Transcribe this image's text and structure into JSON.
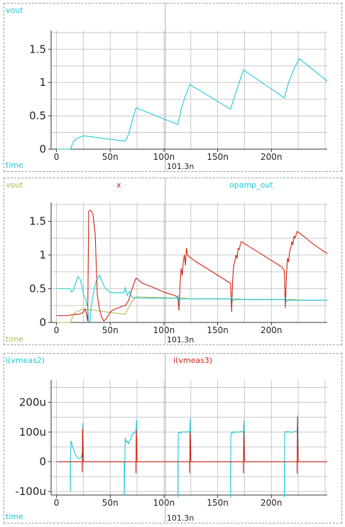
{
  "colors": {
    "cyan": "#1ec8d8",
    "red": "#d42010",
    "olive": "#b8b850",
    "grid": "#c8c8c8",
    "cursor": "#555555"
  },
  "cursor_label": "101.3n",
  "chart_data": [
    {
      "type": "line",
      "x_label": "time",
      "legend": [
        "vout"
      ],
      "xlim": [
        -5,
        252
      ],
      "ylim": [
        0,
        1.78
      ],
      "x_ticks": [
        0,
        50,
        100,
        150,
        200
      ],
      "x_tick_labels": [
        "0",
        "50n",
        "100n",
        "150n",
        "200n"
      ],
      "y_ticks": [
        0,
        0.5,
        1,
        1.5
      ],
      "y_tick_labels": [
        "0",
        "0.5",
        "1",
        "1.5"
      ],
      "cursor_x": 101.3,
      "series": [
        {
          "name": "vout",
          "color": "#1ec8d8",
          "x": [
            0,
            13,
            16,
            19,
            22,
            25,
            64,
            67,
            70,
            74,
            113,
            116,
            120,
            124,
            162,
            166,
            170,
            174,
            212,
            216,
            221,
            226,
            252
          ],
          "y": [
            0,
            0,
            0.12,
            0.16,
            0.18,
            0.2,
            0.12,
            0.22,
            0.4,
            0.62,
            0.37,
            0.6,
            0.8,
            0.97,
            0.6,
            0.8,
            1.0,
            1.19,
            0.77,
            1.0,
            1.2,
            1.36,
            1.02
          ]
        }
      ]
    },
    {
      "type": "line",
      "x_label": "time",
      "legend": [
        "vout",
        "x",
        "opamp_out"
      ],
      "xlim": [
        -5,
        252
      ],
      "ylim": [
        0,
        1.78
      ],
      "x_ticks": [
        0,
        50,
        100,
        150,
        200
      ],
      "x_tick_labels": [
        "0",
        "50n",
        "100n",
        "150n",
        "200n"
      ],
      "y_ticks": [
        0,
        0.5,
        1,
        1.5
      ],
      "y_tick_labels": [
        "0",
        "0.5",
        "1",
        "1.5"
      ],
      "cursor_x": 101.3,
      "series": [
        {
          "name": "vout",
          "color": "#b8b850",
          "x": [
            0,
            13,
            16,
            19,
            22,
            25,
            64,
            67,
            70,
            74,
            113,
            116,
            120,
            124,
            162,
            166,
            170,
            174,
            212,
            216,
            221,
            226,
            252
          ],
          "y": [
            0,
            0,
            0.12,
            0.16,
            0.18,
            0.2,
            0.12,
            0.22,
            0.3,
            0.38,
            0.36,
            0.36,
            0.36,
            0.35,
            0.35,
            0.35,
            0.35,
            0.34,
            0.34,
            0.34,
            0.34,
            0.33,
            0.33
          ]
        },
        {
          "name": "x",
          "color": "#d42010",
          "x": [
            0,
            10,
            13,
            16,
            20,
            24,
            27,
            29,
            30,
            31,
            32,
            33,
            34,
            36,
            38,
            40,
            42,
            44,
            46,
            48,
            50,
            52,
            55,
            58,
            61,
            64,
            67,
            70,
            74,
            80,
            90,
            100,
            110,
            113,
            114,
            115,
            116,
            117,
            118,
            119,
            120,
            121,
            122,
            124,
            130,
            140,
            150,
            160,
            162,
            163,
            164,
            165,
            166,
            167,
            168,
            169,
            170,
            171,
            172,
            174,
            180,
            190,
            200,
            210,
            212,
            213,
            214,
            215,
            216,
            217,
            218,
            219,
            220,
            221,
            222,
            224,
            230,
            240,
            252
          ],
          "y": [
            0.1,
            0.1,
            0.11,
            0.12,
            0.12,
            0.14,
            0.2,
            0.02,
            1.65,
            1.66,
            1.66,
            1.64,
            1.6,
            1.3,
            0.4,
            0.2,
            0.08,
            0.02,
            0.05,
            0.1,
            0.15,
            0.18,
            0.2,
            0.22,
            0.24,
            0.25,
            0.32,
            0.48,
            0.66,
            0.58,
            0.52,
            0.45,
            0.4,
            0.37,
            0.18,
            0.55,
            0.8,
            0.7,
            0.9,
            1.0,
            0.85,
            1.1,
            1.0,
            0.97,
            0.9,
            0.8,
            0.7,
            0.6,
            0.58,
            0.16,
            0.65,
            0.85,
            0.9,
            1.0,
            0.95,
            1.1,
            1.08,
            1.15,
            1.2,
            1.18,
            1.12,
            1.02,
            0.92,
            0.82,
            0.77,
            0.22,
            0.7,
            0.95,
            0.9,
            1.05,
            1.1,
            1.2,
            1.15,
            1.28,
            1.25,
            1.35,
            1.28,
            1.15,
            1.02
          ]
        },
        {
          "name": "opamp_out",
          "color": "#1ec8d8",
          "x": [
            0,
            13,
            14,
            16,
            18,
            20,
            22,
            24,
            25,
            27,
            29,
            30,
            31,
            32,
            33,
            35,
            37,
            40,
            42,
            44,
            46,
            48,
            50,
            52,
            55,
            58,
            61,
            63,
            64,
            65,
            66,
            68,
            70,
            72,
            74,
            76,
            80,
            100,
            112,
            113,
            114,
            116,
            130,
            150,
            162,
            163,
            164,
            166,
            180,
            200,
            212,
            213,
            214,
            216,
            230,
            252
          ],
          "y": [
            0.5,
            0.5,
            0.45,
            0.48,
            0.6,
            0.68,
            0.64,
            0.52,
            0.42,
            0.35,
            0.22,
            0.02,
            0.0,
            0.2,
            0.3,
            0.48,
            0.62,
            0.7,
            0.62,
            0.55,
            0.5,
            0.47,
            0.45,
            0.44,
            0.44,
            0.44,
            0.44,
            0.45,
            0.52,
            0.44,
            0.4,
            0.46,
            0.38,
            0.36,
            0.37,
            0.36,
            0.36,
            0.36,
            0.36,
            0.4,
            0.32,
            0.35,
            0.35,
            0.35,
            0.35,
            0.38,
            0.32,
            0.34,
            0.34,
            0.34,
            0.34,
            0.37,
            0.31,
            0.33,
            0.33,
            0.33
          ]
        }
      ]
    },
    {
      "type": "line",
      "x_label": "time",
      "legend": [
        "i(vmeas2)",
        "i(vmeas3)"
      ],
      "xlim": [
        -5,
        252
      ],
      "ylim": [
        -112,
        275
      ],
      "x_ticks": [
        0,
        50,
        100,
        150,
        200
      ],
      "x_tick_labels": [
        "0",
        "50n",
        "100n",
        "150n",
        "200n"
      ],
      "y_ticks": [
        -100,
        0,
        100,
        200
      ],
      "y_tick_labels": [
        "-100u",
        "0",
        "100u",
        "200u"
      ],
      "cursor_x": 101.3,
      "series": [
        {
          "name": "i(vmeas2)",
          "color": "#1ec8d8",
          "x": [
            0,
            12.9,
            13,
            13.1,
            13.5,
            14,
            15,
            17,
            19,
            21,
            23,
            24,
            24.5,
            25,
            63,
            63.1,
            63.3,
            64,
            65,
            66,
            67,
            68,
            69,
            70,
            71,
            72,
            73,
            74,
            74.5,
            75,
            113,
            113.1,
            113.3,
            114,
            115,
            116,
            117,
            118,
            120,
            122,
            123,
            124,
            124.5,
            125,
            162,
            162.1,
            162.3,
            163,
            164,
            165,
            166,
            167,
            168,
            170,
            172,
            173,
            174,
            174.5,
            175,
            212,
            212.1,
            212.3,
            213,
            214,
            215,
            216,
            217,
            218,
            220,
            222,
            223,
            224,
            224.5,
            225,
            252
          ],
          "y": [
            0,
            0,
            -100,
            0,
            70,
            65,
            50,
            30,
            15,
            10,
            15,
            30,
            130,
            0,
            0,
            -110,
            -50,
            80,
            65,
            70,
            60,
            70,
            75,
            85,
            95,
            95,
            100,
            100,
            140,
            0,
            0,
            -120,
            95,
            100,
            98,
            97,
            100,
            101,
            100,
            101,
            100,
            102,
            145,
            0,
            0,
            -120,
            90,
            100,
            96,
            102,
            98,
            101,
            99,
            100,
            102,
            100,
            101,
            138,
            0,
            0,
            -120,
            95,
            103,
            98,
            102,
            100,
            101,
            99,
            100,
            102,
            101,
            100,
            155,
            0,
            0
          ]
        },
        {
          "name": "i(vmeas3)",
          "color": "#d42010",
          "x": [
            0,
            23.9,
            24,
            24.3,
            24.6,
            25,
            73.9,
            74,
            74.3,
            74.6,
            75,
            123.9,
            124,
            124.3,
            124.6,
            125,
            173.9,
            174,
            174.3,
            174.6,
            175,
            223.9,
            224,
            224.3,
            224.6,
            225,
            252
          ],
          "y": [
            0,
            0,
            -35,
            110,
            60,
            0,
            0,
            -38,
            105,
            70,
            0,
            0,
            -38,
            100,
            80,
            0,
            0,
            -38,
            100,
            80,
            0,
            0,
            -40,
            150,
            80,
            0,
            0
          ]
        }
      ]
    }
  ]
}
